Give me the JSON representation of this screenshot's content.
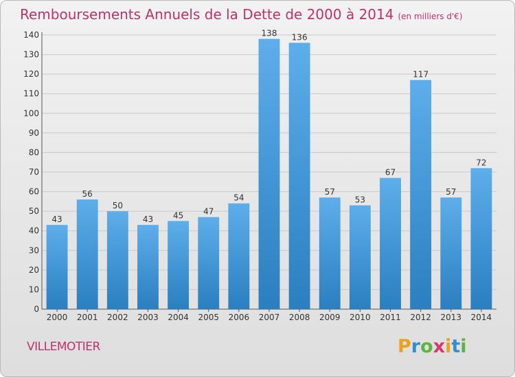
{
  "header": {
    "title": "Remboursements Annuels de la Dette de 2000 à 2014",
    "unit": "(en milliers d'€)"
  },
  "footer": {
    "commune": "VILLEMOTIER",
    "logo_text": "Proxiti"
  },
  "colors": {
    "title": "#c0306a",
    "bar_top": "#5daeea",
    "bar_bottom": "#2a7fc0"
  },
  "chart_data": {
    "type": "bar",
    "title": "Remboursements Annuels de la Dette de 2000 à 2014",
    "unit": "(en milliers d'€)",
    "categories": [
      "2000",
      "2001",
      "2002",
      "2003",
      "2004",
      "2005",
      "2006",
      "2007",
      "2008",
      "2009",
      "2010",
      "2011",
      "2012",
      "2013",
      "2014"
    ],
    "values": [
      43,
      56,
      50,
      43,
      45,
      47,
      54,
      138,
      136,
      57,
      53,
      67,
      117,
      57,
      72
    ],
    "ylim": [
      0,
      140
    ],
    "yticks": [
      0,
      10,
      20,
      30,
      40,
      50,
      60,
      70,
      80,
      90,
      100,
      110,
      120,
      130,
      140
    ],
    "grid": true,
    "legend": "none"
  }
}
